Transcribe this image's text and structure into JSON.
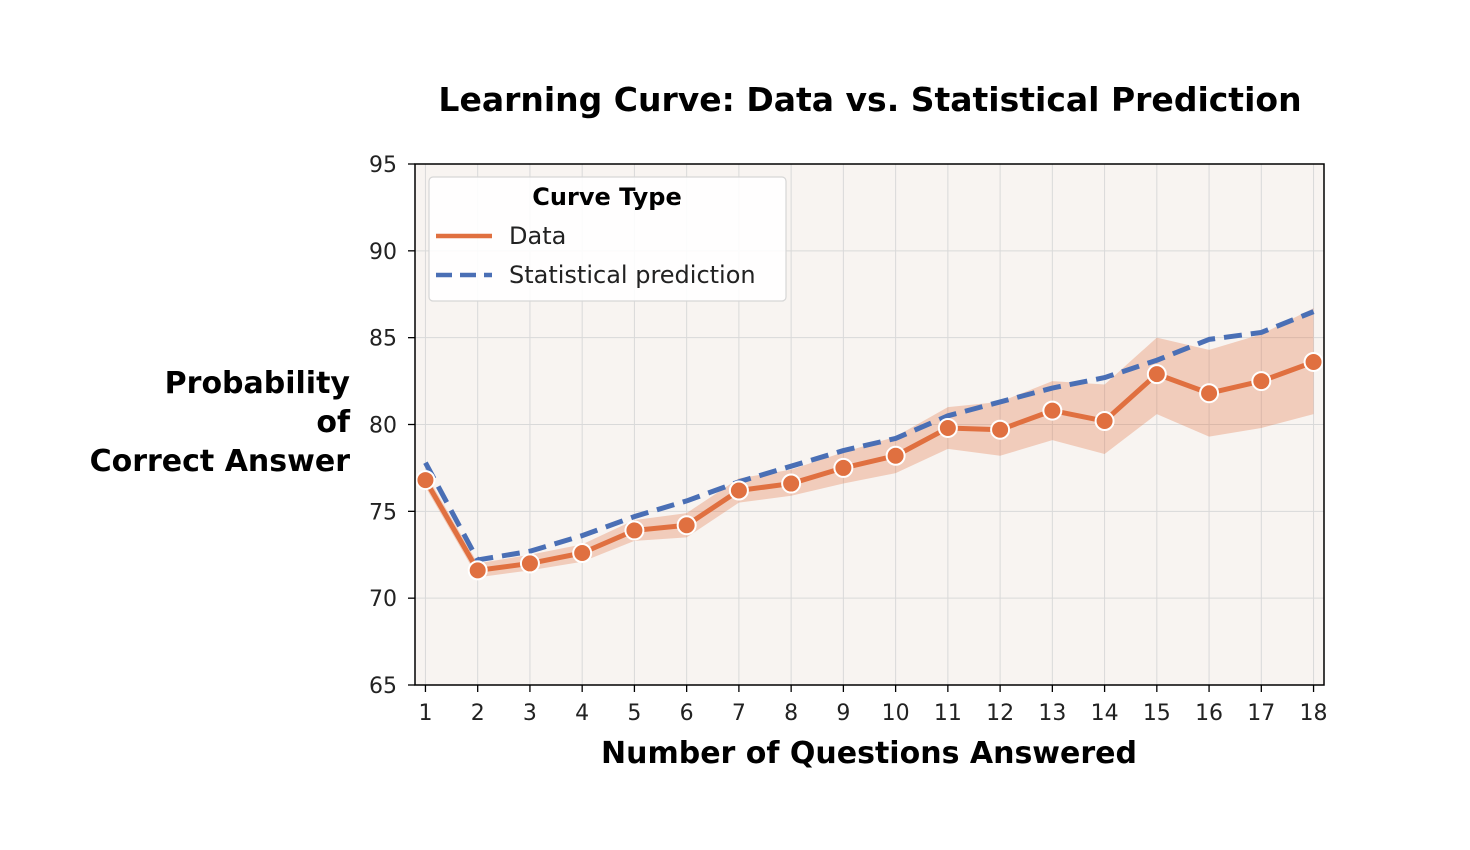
{
  "chart_data": {
    "type": "line",
    "title": "Learning Curve: Data vs. Statistical Prediction",
    "xlabel": "Number of Questions Answered",
    "ylabel_lines": [
      "Probability",
      "of",
      "Correct Answer"
    ],
    "x": [
      1,
      2,
      3,
      4,
      5,
      6,
      7,
      8,
      9,
      10,
      11,
      12,
      13,
      14,
      15,
      16,
      17,
      18
    ],
    "xticks": [
      "1",
      "2",
      "3",
      "4",
      "5",
      "6",
      "7",
      "8",
      "9",
      "10",
      "11",
      "12",
      "13",
      "14",
      "15",
      "16",
      "17",
      "18"
    ],
    "yticks": [
      "65",
      "70",
      "75",
      "80",
      "85",
      "90",
      "95"
    ],
    "ylim": [
      65,
      95
    ],
    "xlim": [
      0.8,
      18.2
    ],
    "grid": true,
    "legend": {
      "title": "Curve Type",
      "placement": "upper-left",
      "entries": [
        "Data",
        "Statistical prediction"
      ]
    },
    "series": [
      {
        "name": "Data",
        "color": "#e07040",
        "style": "solid-with-markers",
        "values": [
          76.8,
          71.6,
          72.0,
          72.6,
          73.9,
          74.2,
          76.2,
          76.6,
          77.5,
          78.2,
          79.8,
          79.7,
          80.8,
          80.2,
          82.9,
          81.8,
          82.5,
          83.6
        ],
        "ci_lower": [
          76.4,
          71.2,
          71.6,
          72.1,
          73.3,
          73.5,
          75.5,
          75.9,
          76.6,
          77.2,
          78.6,
          78.2,
          79.1,
          78.3,
          80.6,
          79.3,
          79.8,
          80.6
        ],
        "ci_upper": [
          77.2,
          72.0,
          72.5,
          73.1,
          74.5,
          74.9,
          76.9,
          77.4,
          78.4,
          79.3,
          81.0,
          81.3,
          82.5,
          82.3,
          85.0,
          84.3,
          85.2,
          86.7
        ]
      },
      {
        "name": "Statistical prediction",
        "color": "#4a6fb5",
        "style": "dashed",
        "values": [
          77.8,
          72.2,
          72.7,
          73.6,
          74.7,
          75.6,
          76.7,
          77.6,
          78.5,
          79.2,
          80.5,
          81.3,
          82.1,
          82.7,
          83.7,
          84.9,
          85.3,
          86.5
        ]
      }
    ]
  }
}
